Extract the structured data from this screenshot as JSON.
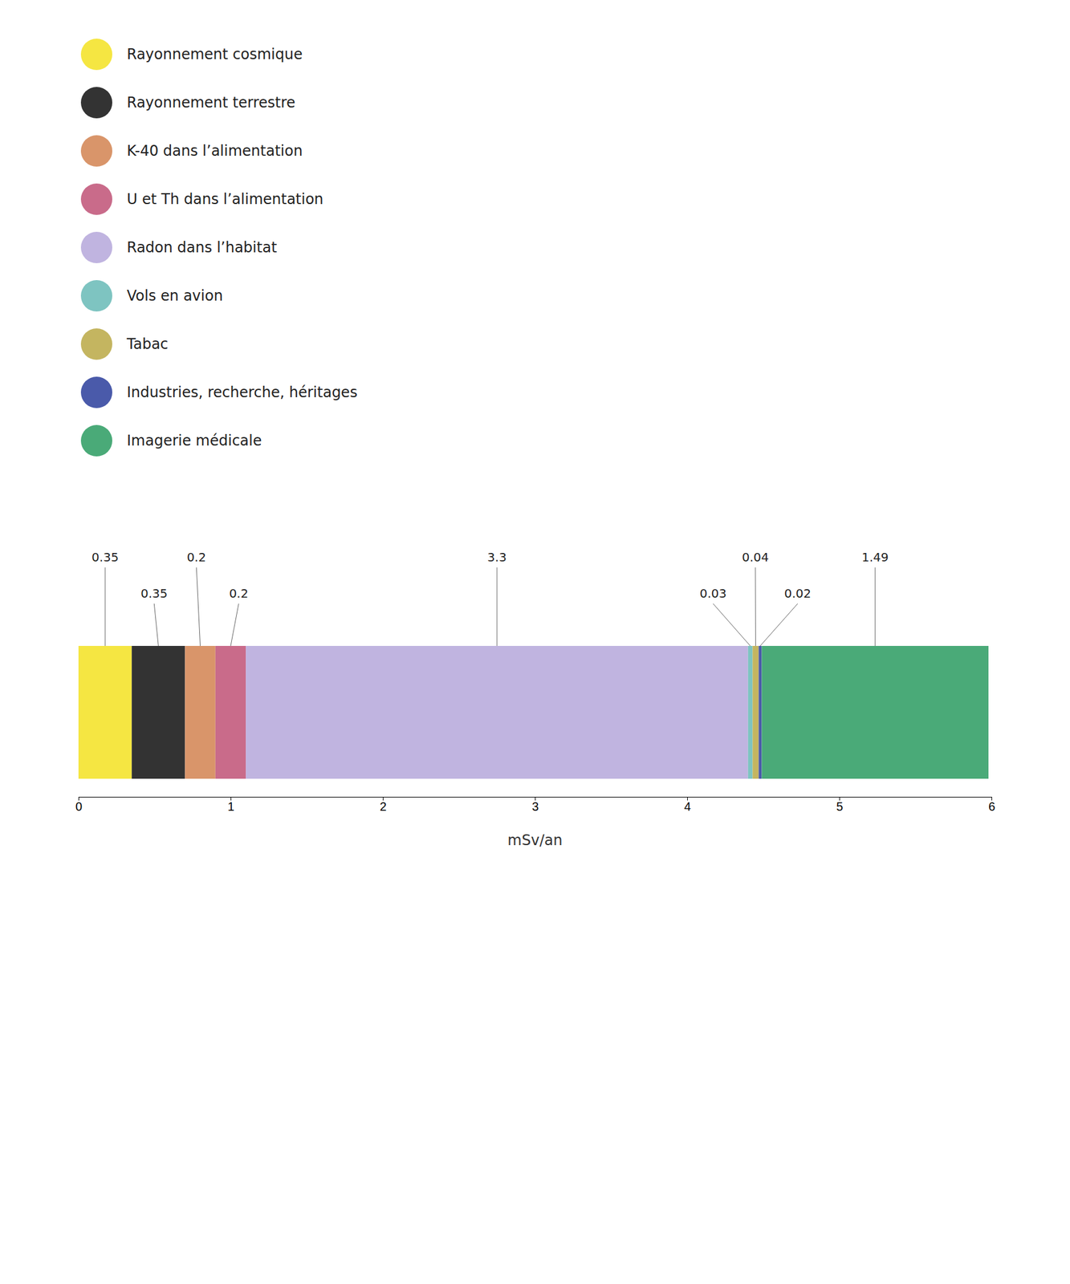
{
  "chart_data": {
    "type": "bar",
    "orientation": "horizontal",
    "stacked": true,
    "categories": [
      null
    ],
    "series": [
      {
        "name": "Rayonnement cosmique",
        "color": "#f5e642",
        "values": [
          0.35
        ]
      },
      {
        "name": "Rayonnement terrestre",
        "color": "#333333",
        "values": [
          0.35
        ]
      },
      {
        "name": "K-40 dans l’alimentation",
        "color": "#d9956a",
        "values": [
          0.2
        ]
      },
      {
        "name": "U et Th dans l’alimentation",
        "color": "#c96b8a",
        "values": [
          0.2
        ]
      },
      {
        "name": "Radon dans l’habitat",
        "color": "#c0b4e0",
        "values": [
          3.3
        ]
      },
      {
        "name": "Vols en avion",
        "color": "#7ec4c1",
        "values": [
          0.03
        ]
      },
      {
        "name": "Tabac",
        "color": "#c4b560",
        "values": [
          0.04
        ]
      },
      {
        "name": "Industries, recherche, héritages",
        "color": "#4a5aaa",
        "values": [
          0.02
        ]
      },
      {
        "name": "Imagerie médicale",
        "color": "#4aaa78",
        "values": [
          1.49
        ]
      }
    ],
    "xlabel": "mSv/an",
    "xlim": [
      0,
      6
    ],
    "xticks": [
      0,
      1,
      2,
      3,
      4,
      5,
      6
    ],
    "grid": false,
    "legend": "top",
    "data_labels": true,
    "tick_labels": "x"
  }
}
